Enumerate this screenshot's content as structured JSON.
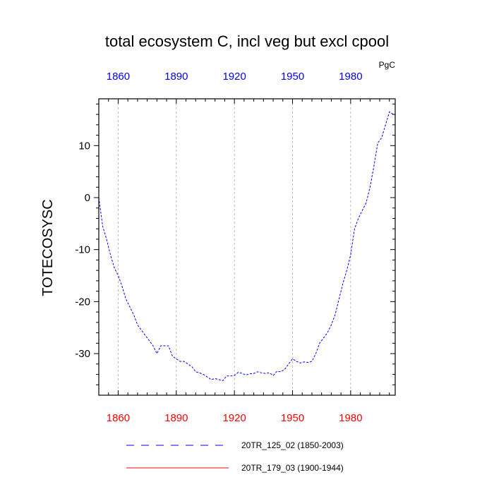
{
  "chart_data": {
    "type": "line",
    "title": "total ecosystem C, incl veg but excl cpool",
    "units": "PgC",
    "ylabel": "TOTECOSYSC",
    "xlabel": "",
    "xlim": [
      1850,
      2003
    ],
    "ylim": [
      -38,
      19
    ],
    "xticks": [
      1860,
      1890,
      1920,
      1950,
      1980
    ],
    "xtick_labels": [
      "1860",
      "1890",
      "1920",
      "1950",
      "1980"
    ],
    "yticks": [
      10,
      0,
      -10,
      -20,
      -30
    ],
    "ytick_labels": [
      "10",
      "0",
      "-10",
      "-20",
      "-30"
    ],
    "grid": "vertical dashed gray at x ticks",
    "colors": {
      "top_ticks": "#0000ff",
      "bottom_ticks": "#ff0000",
      "series1": "#0000ff",
      "series2": "#ff0000"
    },
    "series": [
      {
        "name": "20TR_125_02 (1850-2003)",
        "style": "dashed",
        "x": [
          1850,
          1852,
          1854,
          1856,
          1858,
          1860,
          1862,
          1864,
          1866,
          1868,
          1870,
          1872,
          1874,
          1876,
          1878,
          1880,
          1882,
          1884,
          1886,
          1888,
          1890,
          1892,
          1894,
          1896,
          1898,
          1900,
          1902,
          1904,
          1906,
          1908,
          1910,
          1912,
          1914,
          1916,
          1918,
          1920,
          1922,
          1924,
          1926,
          1928,
          1930,
          1932,
          1934,
          1936,
          1938,
          1940,
          1942,
          1944,
          1946,
          1948,
          1950,
          1952,
          1954,
          1956,
          1958,
          1960,
          1962,
          1964,
          1966,
          1968,
          1970,
          1972,
          1974,
          1976,
          1978,
          1980,
          1982,
          1984,
          1986,
          1988,
          1990,
          1992,
          1994,
          1996,
          1998,
          2000,
          2002,
          2003
        ],
        "values": [
          0,
          -5.5,
          -8,
          -11,
          -13.5,
          -15,
          -17,
          -19.5,
          -21,
          -22.5,
          -24.5,
          -25.5,
          -26.5,
          -27.5,
          -28.5,
          -30,
          -28.5,
          -28.5,
          -28.5,
          -30.5,
          -31,
          -31.5,
          -31.5,
          -32,
          -32.5,
          -33.5,
          -33.7,
          -34,
          -34.5,
          -35,
          -34.8,
          -35,
          -35.2,
          -34.3,
          -34.3,
          -34.2,
          -33.6,
          -33.8,
          -34.1,
          -33.9,
          -33.8,
          -33.5,
          -33.7,
          -33.8,
          -33.7,
          -34.2,
          -33.4,
          -33.5,
          -33,
          -32,
          -31,
          -31.5,
          -31.8,
          -31.6,
          -31.7,
          -31.5,
          -30,
          -28,
          -27,
          -26,
          -24.5,
          -22.5,
          -19.5,
          -16.5,
          -14,
          -11,
          -6,
          -4,
          -2.5,
          -1,
          2,
          6,
          10.5,
          11.5,
          14,
          16.5,
          16,
          16
        ]
      },
      {
        "name": "20TR_179_03 (1900-1944)",
        "style": "solid",
        "x": [],
        "values": []
      }
    ]
  }
}
